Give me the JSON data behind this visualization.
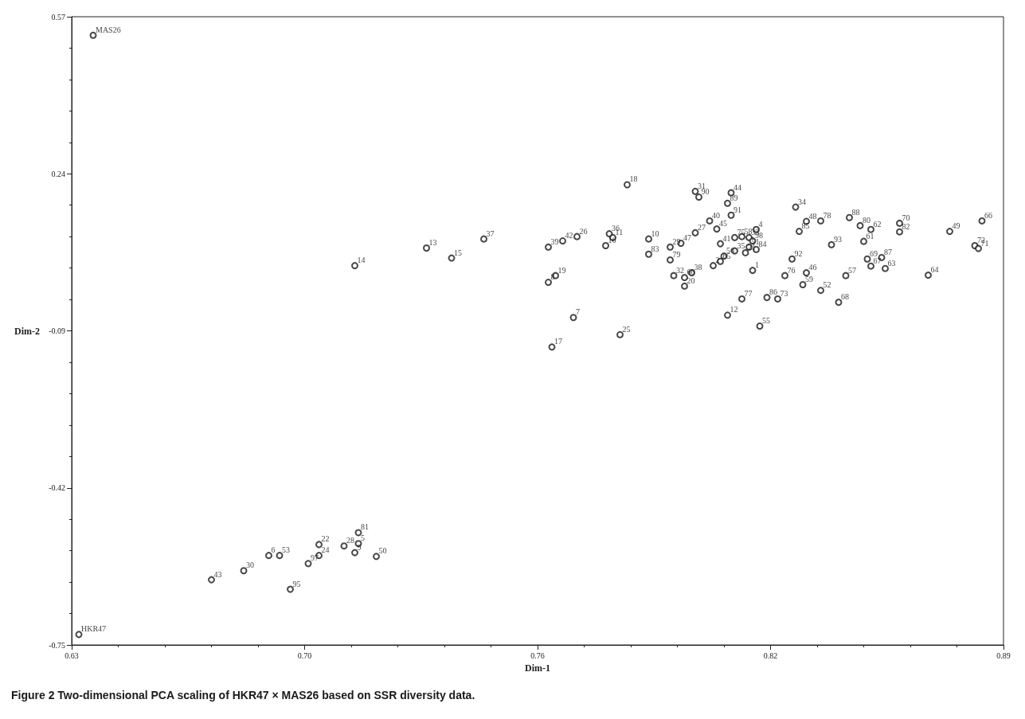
{
  "chart_data": {
    "type": "scatter",
    "xlabel": "Dim-1",
    "ylabel": "Dim-2",
    "xlim": [
      0.63,
      0.89
    ],
    "xticks": [
      0.63,
      {
        "value": 0.695,
        "label": "0.70"
      },
      0.76,
      {
        "value": 0.825,
        "label": "0.82"
      },
      0.89
    ],
    "ylim": [
      -0.75,
      0.57
    ],
    "yticks": [
      -0.75,
      -0.42,
      -0.09,
      0.24,
      0.57
    ],
    "grid": false,
    "marker": "circle",
    "series": [
      {
        "color": "#1a1a1a",
        "x": [
          0.636,
          0.632,
          0.709,
          0.729,
          0.736,
          0.745,
          0.763,
          0.767,
          0.771,
          0.78,
          0.781,
          0.779,
          0.791,
          0.791,
          0.763,
          0.765,
          0.77,
          0.783,
          0.764,
          0.785,
          0.804,
          0.805,
          0.814,
          0.813,
          0.814,
          0.808,
          0.81,
          0.804,
          0.8,
          0.797,
          0.797,
          0.811,
          0.821,
          0.815,
          0.817,
          0.819,
          0.82,
          0.821,
          0.819,
          0.818,
          0.815,
          0.812,
          0.811,
          0.809,
          0.82,
          0.798,
          0.801,
          0.803,
          0.801,
          0.817,
          0.813,
          0.824,
          0.827,
          0.822,
          0.829,
          0.831,
          0.835,
          0.834,
          0.839,
          0.844,
          0.846,
          0.833,
          0.835,
          0.839,
          0.832,
          0.847,
          0.842,
          0.85,
          0.853,
          0.851,
          0.852,
          0.856,
          0.853,
          0.857,
          0.861,
          0.861,
          0.869,
          0.875,
          0.884,
          0.882,
          0.883,
          0.669,
          0.678,
          0.685,
          0.688,
          0.699,
          0.699,
          0.696,
          0.706,
          0.71,
          0.71,
          0.709,
          0.715,
          0.691
        ],
        "values": [
          0.531,
          -0.728,
          0.047,
          0.084,
          0.063,
          0.103,
          0.086,
          0.099,
          0.108,
          0.114,
          0.106,
          0.089,
          0.103,
          0.071,
          0.012,
          0.026,
          -0.062,
          -0.098,
          -0.124,
          0.217,
          0.203,
          0.191,
          0.2,
          0.178,
          0.153,
          0.141,
          0.124,
          0.116,
          0.094,
          0.086,
          0.059,
          0.093,
          0.123,
          0.106,
          0.108,
          0.106,
          0.099,
          0.081,
          0.086,
          0.074,
          0.078,
          0.067,
          0.056,
          0.047,
          0.037,
          0.026,
          0.022,
          0.032,
          0.004,
          -0.023,
          -0.057,
          -0.02,
          -0.023,
          -0.08,
          0.026,
          0.061,
          0.032,
          0.007,
          -0.005,
          -0.03,
          0.026,
          0.119,
          0.14,
          0.141,
          0.17,
          0.148,
          0.091,
          0.131,
          0.123,
          0.098,
          0.061,
          0.064,
          0.046,
          0.041,
          0.136,
          0.118,
          0.027,
          0.119,
          0.141,
          0.089,
          0.083,
          -0.613,
          -0.594,
          -0.562,
          -0.562,
          -0.539,
          -0.562,
          -0.579,
          -0.542,
          -0.514,
          -0.537,
          -0.556,
          -0.564,
          -0.633
        ]
      }
    ],
    "annotations": [
      {
        "text": "MAS26",
        "x": 0.636,
        "y": 0.531
      },
      {
        "text": "HKR47",
        "x": 0.632,
        "y": -0.728
      },
      {
        "text": "14",
        "x": 0.709,
        "y": 0.047
      },
      {
        "text": "13",
        "x": 0.729,
        "y": 0.084
      },
      {
        "text": "15",
        "x": 0.736,
        "y": 0.063
      },
      {
        "text": "37",
        "x": 0.745,
        "y": 0.103
      },
      {
        "text": "39",
        "x": 0.763,
        "y": 0.086
      },
      {
        "text": "42",
        "x": 0.767,
        "y": 0.099
      },
      {
        "text": "26",
        "x": 0.771,
        "y": 0.108
      },
      {
        "text": "36",
        "x": 0.78,
        "y": 0.114
      },
      {
        "text": "11",
        "x": 0.781,
        "y": 0.106
      },
      {
        "text": "16",
        "x": 0.779,
        "y": 0.089
      },
      {
        "text": "10",
        "x": 0.791,
        "y": 0.103
      },
      {
        "text": "83",
        "x": 0.791,
        "y": 0.071
      },
      {
        "text": "8",
        "x": 0.763,
        "y": 0.012
      },
      {
        "text": "19",
        "x": 0.765,
        "y": 0.026
      },
      {
        "text": "7",
        "x": 0.77,
        "y": -0.062
      },
      {
        "text": "25",
        "x": 0.783,
        "y": -0.098
      },
      {
        "text": "17",
        "x": 0.764,
        "y": -0.124
      },
      {
        "text": "18",
        "x": 0.785,
        "y": 0.217
      },
      {
        "text": "31",
        "x": 0.804,
        "y": 0.203
      },
      {
        "text": "90",
        "x": 0.805,
        "y": 0.191
      },
      {
        "text": "44",
        "x": 0.814,
        "y": 0.2
      },
      {
        "text": "89",
        "x": 0.813,
        "y": 0.178
      },
      {
        "text": "91",
        "x": 0.814,
        "y": 0.153
      },
      {
        "text": "40",
        "x": 0.808,
        "y": 0.141
      },
      {
        "text": "45",
        "x": 0.81,
        "y": 0.124
      },
      {
        "text": "27",
        "x": 0.804,
        "y": 0.116
      },
      {
        "text": "47",
        "x": 0.8,
        "y": 0.094
      },
      {
        "text": "29",
        "x": 0.797,
        "y": 0.086
      },
      {
        "text": "79",
        "x": 0.797,
        "y": 0.059
      },
      {
        "text": "41",
        "x": 0.811,
        "y": 0.093
      },
      {
        "text": "4",
        "x": 0.821,
        "y": 0.123
      },
      {
        "text": "75",
        "x": 0.815,
        "y": 0.106
      },
      {
        "text": "58",
        "x": 0.817,
        "y": 0.108
      },
      {
        "text": "33",
        "x": 0.819,
        "y": 0.106
      },
      {
        "text": "98",
        "x": 0.82,
        "y": 0.099
      },
      {
        "text": "84",
        "x": 0.821,
        "y": 0.081
      },
      {
        "text": "51",
        "x": 0.819,
        "y": 0.086
      },
      {
        "text": "21",
        "x": 0.818,
        "y": 0.074
      },
      {
        "text": "35",
        "x": 0.815,
        "y": 0.078
      },
      {
        "text": "56",
        "x": 0.812,
        "y": 0.067
      },
      {
        "text": "65",
        "x": 0.811,
        "y": 0.056
      },
      {
        "text": "2",
        "x": 0.809,
        "y": 0.047
      },
      {
        "text": "1",
        "x": 0.82,
        "y": 0.037
      },
      {
        "text": "32",
        "x": 0.798,
        "y": 0.026
      },
      {
        "text": "60",
        "x": 0.801,
        "y": 0.022
      },
      {
        "text": "38",
        "x": 0.803,
        "y": 0.032
      },
      {
        "text": "20",
        "x": 0.801,
        "y": 0.004
      },
      {
        "text": "77",
        "x": 0.817,
        "y": -0.023
      },
      {
        "text": "12",
        "x": 0.813,
        "y": -0.057
      },
      {
        "text": "86",
        "x": 0.824,
        "y": -0.02
      },
      {
        "text": "73",
        "x": 0.827,
        "y": -0.023
      },
      {
        "text": "55",
        "x": 0.822,
        "y": -0.08
      },
      {
        "text": "76",
        "x": 0.829,
        "y": 0.026
      },
      {
        "text": "92",
        "x": 0.831,
        "y": 0.061
      },
      {
        "text": "46",
        "x": 0.835,
        "y": 0.032
      },
      {
        "text": "59",
        "x": 0.834,
        "y": 0.007
      },
      {
        "text": "52",
        "x": 0.839,
        "y": -0.005
      },
      {
        "text": "68",
        "x": 0.844,
        "y": -0.03
      },
      {
        "text": "57",
        "x": 0.846,
        "y": 0.026
      },
      {
        "text": "85",
        "x": 0.833,
        "y": 0.119
      },
      {
        "text": "48",
        "x": 0.835,
        "y": 0.14
      },
      {
        "text": "78",
        "x": 0.839,
        "y": 0.141
      },
      {
        "text": "34",
        "x": 0.832,
        "y": 0.17
      },
      {
        "text": "88",
        "x": 0.847,
        "y": 0.148
      },
      {
        "text": "93",
        "x": 0.842,
        "y": 0.091
      },
      {
        "text": "80",
        "x": 0.85,
        "y": 0.131
      },
      {
        "text": "62",
        "x": 0.853,
        "y": 0.123
      },
      {
        "text": "61",
        "x": 0.851,
        "y": 0.098
      },
      {
        "text": "69",
        "x": 0.852,
        "y": 0.061
      },
      {
        "text": "87",
        "x": 0.856,
        "y": 0.064
      },
      {
        "text": "67",
        "x": 0.853,
        "y": 0.046
      },
      {
        "text": "63",
        "x": 0.857,
        "y": 0.041
      },
      {
        "text": "70",
        "x": 0.861,
        "y": 0.136
      },
      {
        "text": "82",
        "x": 0.861,
        "y": 0.118
      },
      {
        "text": "64",
        "x": 0.869,
        "y": 0.027
      },
      {
        "text": "49",
        "x": 0.875,
        "y": 0.119
      },
      {
        "text": "66",
        "x": 0.884,
        "y": 0.141
      },
      {
        "text": "72",
        "x": 0.882,
        "y": 0.089
      },
      {
        "text": "71",
        "x": 0.883,
        "y": 0.083
      },
      {
        "text": "43",
        "x": 0.669,
        "y": -0.613
      },
      {
        "text": "30",
        "x": 0.678,
        "y": -0.594
      },
      {
        "text": "6",
        "x": 0.685,
        "y": -0.562
      },
      {
        "text": "53",
        "x": 0.688,
        "y": -0.562
      },
      {
        "text": "22",
        "x": 0.699,
        "y": -0.539
      },
      {
        "text": "24",
        "x": 0.699,
        "y": -0.562
      },
      {
        "text": "97",
        "x": 0.696,
        "y": -0.579
      },
      {
        "text": "28",
        "x": 0.706,
        "y": -0.542
      },
      {
        "text": "81",
        "x": 0.71,
        "y": -0.514
      },
      {
        "text": "5",
        "x": 0.71,
        "y": -0.537
      },
      {
        "text": "9",
        "x": 0.709,
        "y": -0.556
      },
      {
        "text": "50",
        "x": 0.715,
        "y": -0.564
      },
      {
        "text": "95",
        "x": 0.691,
        "y": -0.633
      },
      "Figure 2 Two-dimensional PCA scaling of HKR47 × MAS26 based on SSR diversity data."
    ]
  }
}
